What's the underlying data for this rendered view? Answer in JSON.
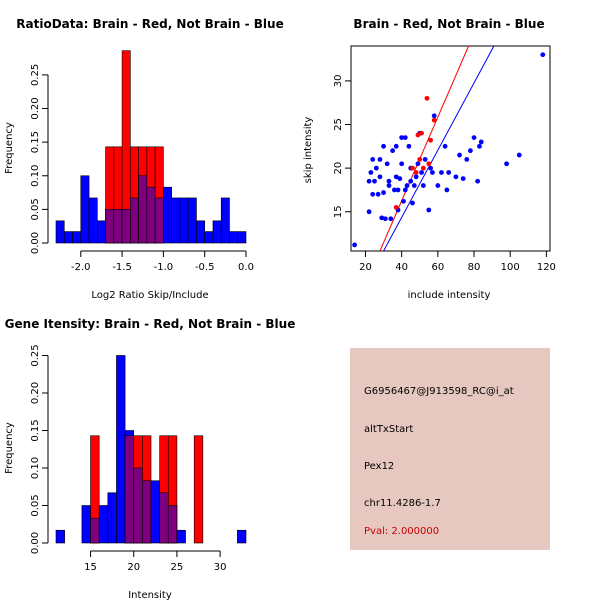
{
  "colors": {
    "red": "#ff0000",
    "blue": "#0000ff",
    "overlap": "#7f007f",
    "panel_bg": "#e6c8c0",
    "pval_text": "#cc0000"
  },
  "info_panel": {
    "probe": "G6956467@J913598_RC@i_at",
    "event": "altTxStart",
    "gene": "Pex12",
    "location": "chr11.4286-1.7",
    "pval": "Pval: 2.000000"
  },
  "chart_data": [
    {
      "id": "ratio-hist",
      "type": "bar",
      "title": "RatioData: Brain - Red, Not Brain - Blue",
      "xlabel": "Log2 Ratio Skip/Include",
      "ylabel": "Frequency",
      "xlim": [
        -2.3,
        0.0
      ],
      "ylim": [
        0,
        0.29
      ],
      "xticks": [
        -2.0,
        -1.5,
        -1.0,
        -0.5,
        0.0
      ],
      "xtick_labels": [
        "-2.0",
        "-1.5",
        "-1.0",
        "-0.5",
        "0.0"
      ],
      "yticks": [
        0.0,
        0.05,
        0.1,
        0.15,
        0.2,
        0.25
      ],
      "ytick_labels": [
        "0.00",
        "0.05",
        "0.10",
        "0.15",
        "0.20",
        "0.25"
      ],
      "bin_edges": [
        -2.3,
        -2.2,
        -2.1,
        -2.0,
        -1.9,
        -1.8,
        -1.7,
        -1.6,
        -1.5,
        -1.4,
        -1.3,
        -1.2,
        -1.1,
        -1.0,
        -0.9,
        -0.8,
        -0.7,
        -0.6,
        -0.5,
        -0.4,
        -0.3,
        -0.2,
        -0.1,
        0.0
      ],
      "series": [
        {
          "name": "Not Brain",
          "color": "blue",
          "values": [
            0.033,
            0.017,
            0.017,
            0.1,
            0.067,
            0.033,
            0.05,
            0.05,
            0.05,
            0.067,
            0.1,
            0.083,
            0.067,
            0.083,
            0.067,
            0.067,
            0.067,
            0.033,
            0.017,
            0.033,
            0.067,
            0.017,
            0.017
          ]
        },
        {
          "name": "Brain",
          "color": "red",
          "values": [
            0,
            0,
            0,
            0,
            0,
            0,
            0.143,
            0.143,
            0.286,
            0.143,
            0.143,
            0.143,
            0.143,
            0,
            0,
            0,
            0,
            0,
            0,
            0,
            0,
            0,
            0
          ]
        }
      ]
    },
    {
      "id": "scatter",
      "type": "scatter",
      "title": "Brain - Red, Not Brain - Blue",
      "xlabel": "include intensity",
      "ylabel": "skip intensity",
      "xlim": [
        12,
        122
      ],
      "ylim": [
        10.5,
        34
      ],
      "xticks": [
        20,
        40,
        60,
        80,
        100,
        120
      ],
      "xtick_labels": [
        "20",
        "40",
        "60",
        "80",
        "100",
        "120"
      ],
      "yticks": [
        15,
        20,
        25,
        30
      ],
      "ytick_labels": [
        "15",
        "20",
        "25",
        "30"
      ],
      "series": [
        {
          "name": "Not Brain",
          "color": "blue",
          "points": [
            [
              14,
              11.2
            ],
            [
              22,
              15
            ],
            [
              22,
              18.5
            ],
            [
              23,
              19.5
            ],
            [
              24,
              17
            ],
            [
              24,
              21
            ],
            [
              25,
              18.5
            ],
            [
              26,
              20
            ],
            [
              27,
              17
            ],
            [
              28,
              19
            ],
            [
              28,
              21
            ],
            [
              29,
              14.3
            ],
            [
              30,
              17.2
            ],
            [
              30,
              22.5
            ],
            [
              31,
              14.2
            ],
            [
              32,
              20.5
            ],
            [
              33,
              18
            ],
            [
              33,
              18.5
            ],
            [
              34,
              14.2
            ],
            [
              35,
              22
            ],
            [
              36,
              17.5
            ],
            [
              37,
              19
            ],
            [
              37,
              22.5
            ],
            [
              38,
              15.2
            ],
            [
              38,
              17.5
            ],
            [
              39,
              18.8
            ],
            [
              40,
              20.5
            ],
            [
              40,
              23.5
            ],
            [
              41,
              16.2
            ],
            [
              42,
              17.5
            ],
            [
              42,
              23.5
            ],
            [
              43,
              18
            ],
            [
              44,
              22.5
            ],
            [
              45,
              20
            ],
            [
              45,
              18.5
            ],
            [
              46,
              16
            ],
            [
              47,
              18
            ],
            [
              48,
              19
            ],
            [
              49,
              20.5
            ],
            [
              50,
              24
            ],
            [
              51,
              19.5
            ],
            [
              52,
              18
            ],
            [
              53,
              21
            ],
            [
              55,
              15.2
            ],
            [
              56,
              20
            ],
            [
              57,
              19.5
            ],
            [
              58,
              26
            ],
            [
              60,
              18
            ],
            [
              62,
              19.5
            ],
            [
              64,
              22.5
            ],
            [
              65,
              17.5
            ],
            [
              66,
              19.5
            ],
            [
              70,
              19
            ],
            [
              72,
              21.5
            ],
            [
              74,
              18.8
            ],
            [
              76,
              21
            ],
            [
              78,
              22
            ],
            [
              80,
              23.5
            ],
            [
              82,
              18.5
            ],
            [
              83,
              22.5
            ],
            [
              84,
              23
            ],
            [
              98,
              20.5
            ],
            [
              105,
              21.5
            ],
            [
              118,
              33
            ]
          ]
        },
        {
          "name": "Brain",
          "color": "red",
          "points": [
            [
              37,
              15.5
            ],
            [
              46,
              20
            ],
            [
              48,
              19.5
            ],
            [
              49,
              23.8
            ],
            [
              50,
              21
            ],
            [
              51,
              24
            ],
            [
              52,
              20
            ],
            [
              54,
              28
            ],
            [
              55,
              20.5
            ],
            [
              56,
              23.2
            ],
            [
              58,
              25.5
            ]
          ]
        }
      ],
      "lines": [
        {
          "name": "Brain fit",
          "color": "red",
          "from": [
            28,
            10.5
          ],
          "to": [
            77,
            34
          ]
        },
        {
          "name": "Not Brain fit",
          "color": "blue",
          "from": [
            30,
            10.5
          ],
          "to": [
            91,
            34
          ]
        }
      ]
    },
    {
      "id": "gene-hist",
      "type": "bar",
      "title": "Gene Itensity: Brain - Red, Not Brain - Blue",
      "xlabel": "Intensity",
      "ylabel": "Frequency",
      "xlim": [
        11,
        33
      ],
      "ylim": [
        0,
        0.26
      ],
      "xticks": [
        15,
        20,
        25,
        30
      ],
      "xtick_labels": [
        "15",
        "20",
        "25",
        "30"
      ],
      "yticks": [
        0.0,
        0.05,
        0.1,
        0.15,
        0.2,
        0.25
      ],
      "ytick_labels": [
        "0.00",
        "0.05",
        "0.10",
        "0.15",
        "0.20",
        "0.25"
      ],
      "bin_edges": [
        11,
        12,
        13,
        14,
        15,
        16,
        17,
        18,
        19,
        20,
        21,
        22,
        23,
        24,
        25,
        26,
        27,
        28,
        29,
        30,
        31,
        32,
        33
      ],
      "series": [
        {
          "name": "Not Brain",
          "color": "blue",
          "values": [
            0.017,
            0,
            0,
            0.05,
            0.033,
            0.05,
            0.067,
            0.25,
            0.15,
            0.1,
            0.083,
            0.083,
            0.067,
            0.05,
            0.017,
            0,
            0,
            0,
            0,
            0,
            0,
            0.017
          ]
        },
        {
          "name": "Brain",
          "color": "red",
          "values": [
            0,
            0,
            0,
            0,
            0.143,
            0,
            0,
            0,
            0.143,
            0.143,
            0.143,
            0,
            0.143,
            0.143,
            0,
            0,
            0.143,
            0,
            0,
            0,
            0,
            0
          ]
        }
      ]
    }
  ]
}
